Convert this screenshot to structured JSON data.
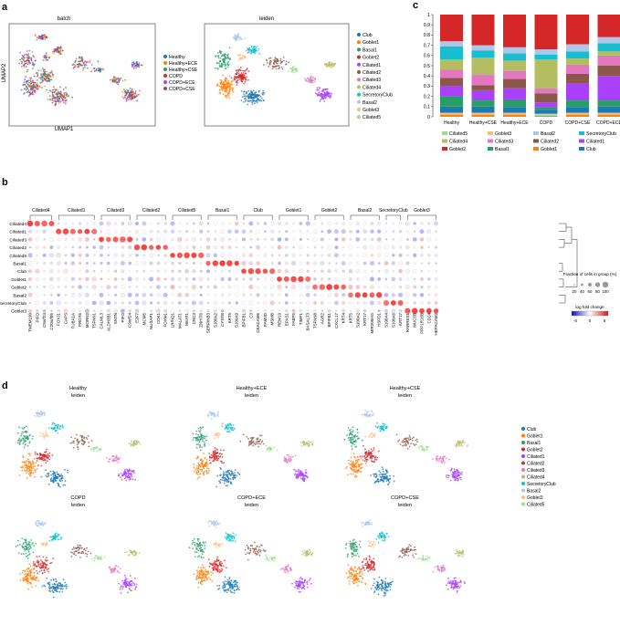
{
  "panel_letters": [
    "a",
    "b",
    "c",
    "d"
  ],
  "palette": {
    "Club": "#1f77b4",
    "Goblet1": "#ff7f0e",
    "Basal1": "#279e68",
    "Goblet2": "#d62728",
    "Ciliated1": "#aa40fc",
    "Ciliated2": "#8c564b",
    "Ciliated3": "#e377c2",
    "Ciliated4": "#b5bd61",
    "SecretoryClub": "#17becf",
    "Basal2": "#aec7e8",
    "Goblet3": "#ffbb78",
    "Ciliated5": "#98df8a"
  },
  "panel_a": {
    "left": {
      "title": "batch",
      "xlabel": "UMAP1",
      "ylabel": "UMAP2",
      "legend": [
        {
          "label": "Healthy",
          "color": "#1f77b4"
        },
        {
          "label": "Healthy+ECE",
          "color": "#ff7f0e"
        },
        {
          "label": "Healthy+CSE",
          "color": "#279e68"
        },
        {
          "label": "COPD",
          "color": "#d62728"
        },
        {
          "label": "COPD+ECE",
          "color": "#aa40fc"
        },
        {
          "label": "COPD+CSE",
          "color": "#8c564b"
        }
      ]
    },
    "right": {
      "title": "leiden",
      "legend": [
        "Club",
        "Goblet1",
        "Basal1",
        "Goblet2",
        "Ciliated1",
        "Ciliated2",
        "Ciliated3",
        "Ciliated4",
        "SecretoryClub",
        "Basal2",
        "Goblet3",
        "Ciliated5"
      ]
    }
  },
  "chart_data": [
    {
      "type": "bar",
      "stacked": true,
      "panel": "c",
      "categories": [
        "Healthy",
        "Healthy+CSE",
        "Healthy+ECE",
        "COPD",
        "COPD+CSE",
        "COPD+ECE"
      ],
      "ylim": [
        0,
        1
      ],
      "yticks": [
        "0",
        "0.1",
        "0.2",
        "0.3",
        "0.4",
        "0.5",
        "0.6",
        "0.7",
        "0.8",
        "0.9",
        "1"
      ],
      "series": [
        {
          "name": "Goblet1",
          "color": "#ff7f0e",
          "values": [
            0.02,
            0.02,
            0.02,
            0.01,
            0.02,
            0.02
          ]
        },
        {
          "name": "Ciliated5",
          "color": "#98df8a",
          "values": [
            0.01,
            0.01,
            0.01,
            0.01,
            0.01,
            0.01
          ]
        },
        {
          "name": "Goblet3",
          "color": "#ffbb78",
          "values": [
            0.01,
            0.01,
            0.01,
            0.01,
            0.01,
            0.01
          ]
        },
        {
          "name": "Club",
          "color": "#1f77b4",
          "values": [
            0.06,
            0.06,
            0.05,
            0.04,
            0.05,
            0.06
          ]
        },
        {
          "name": "Basal1",
          "color": "#279e68",
          "values": [
            0.1,
            0.06,
            0.08,
            0.02,
            0.07,
            0.06
          ]
        },
        {
          "name": "Ciliated1",
          "color": "#aa40fc",
          "values": [
            0.1,
            0.1,
            0.11,
            0.05,
            0.17,
            0.24
          ]
        },
        {
          "name": "Ciliated2",
          "color": "#8c564b",
          "values": [
            0.08,
            0.05,
            0.09,
            0.09,
            0.09,
            0.1
          ]
        },
        {
          "name": "Ciliated3",
          "color": "#e377c2",
          "values": [
            0.08,
            0.1,
            0.08,
            0.05,
            0.09,
            0.1
          ]
        },
        {
          "name": "Ciliated4",
          "color": "#b5bd61",
          "values": [
            0.1,
            0.17,
            0.1,
            0.28,
            0.06,
            0.04
          ]
        },
        {
          "name": "SecretoryClub",
          "color": "#17becf",
          "values": [
            0.13,
            0.07,
            0.07,
            0.05,
            0.07,
            0.08
          ]
        },
        {
          "name": "Basal2",
          "color": "#aec7e8",
          "values": [
            0.05,
            0.05,
            0.06,
            0.05,
            0.07,
            0.06
          ]
        },
        {
          "name": "Goblet2",
          "color": "#d62728",
          "values": [
            0.26,
            0.3,
            0.32,
            0.34,
            0.29,
            0.22
          ]
        }
      ],
      "legend": [
        {
          "label": "Ciliated5",
          "color": "#98df8a"
        },
        {
          "label": "Goblet3",
          "color": "#ffbb78"
        },
        {
          "label": "Basal2",
          "color": "#aec7e8"
        },
        {
          "label": "SecretoryClub",
          "color": "#17becf"
        },
        {
          "label": "Ciliated4",
          "color": "#b5bd61"
        },
        {
          "label": "Ciliated3",
          "color": "#e377c2"
        },
        {
          "label": "Ciliated2",
          "color": "#8c564b"
        },
        {
          "label": "Ciliated1",
          "color": "#aa40fc"
        },
        {
          "label": "Goblet2",
          "color": "#d62728"
        },
        {
          "label": "Basal1",
          "color": "#279e68"
        },
        {
          "label": "Goblet1",
          "color": "#ff7f0e"
        },
        {
          "label": "Club",
          "color": "#1f77b4"
        }
      ]
    },
    {
      "type": "heatmap",
      "panel": "b",
      "rows": [
        "Ciliated4",
        "Ciliated1",
        "Ciliated3",
        "Ciliated2",
        "Ciliated5",
        "Basal1",
        "Club",
        "Goblet1",
        "Goblet2",
        "Basal2",
        "SecretoryClub",
        "Goblet3"
      ],
      "groups": [
        {
          "name": "Ciliated4",
          "genes": [
            "TMEM190",
            "PIFO",
            "C9orf24",
            "C20orf85"
          ]
        },
        {
          "name": "Ciliated1",
          "genes": [
            "FOXJ1",
            "CAPS",
            "TUBA1A",
            "PRDX5",
            "MORN2",
            "TSPAN1"
          ]
        },
        {
          "name": "Ciliated3",
          "genes": [
            "CALML3",
            "ALDH3B1",
            "SNTN",
            "PIFO",
            "C9orf24"
          ]
        },
        {
          "name": "Ciliated2",
          "genes": [
            "E2F7",
            "MCM5",
            "NUSAP1",
            "CDK1",
            "FOXM1"
          ]
        },
        {
          "name": "Ciliated5",
          "genes": [
            "LRRIQ1",
            "MALAT1",
            "NEAT1",
            "CRC3",
            "ZNHIT6"
          ]
        },
        {
          "name": "Basal1",
          "genes": [
            "SERPINB3",
            "S100A2",
            "CYSTB",
            "KRT5",
            "S100A9"
          ]
        },
        {
          "name": "Club",
          "genes": [
            "BPIFB1",
            "C3",
            "CEACAM6",
            "FAM3D",
            "MSMB"
          ]
        },
        {
          "name": "Goblet1",
          "genes": [
            "REM19",
            "EPAS1",
            "FABP5",
            "TIMP1",
            "BASALT3"
          ]
        },
        {
          "name": "Goblet2",
          "genes": [
            "TSPAN8",
            "AGR2",
            "BPIFB1",
            "CXCL17",
            "KRT4"
          ]
        },
        {
          "name": "Basal2",
          "genes": [
            "KRT5",
            "S100A2",
            "KRT17",
            "MIR205HG",
            "HSPD1"
          ]
        },
        {
          "name": "SecretoryClub",
          "genes": [
            "S100A4",
            "S100A6",
            "KRT17"
          ]
        },
        {
          "name": "Goblet3",
          "genes": [
            "RARRES1",
            "MUC5B",
            "PPP1R16B",
            "CD24",
            "HEPACAM2"
          ]
        }
      ],
      "size_legend": {
        "title": "Fraction of cells in group (%)",
        "ticks": [
          "20",
          "40",
          "60",
          "80",
          "100"
        ]
      },
      "color_legend": {
        "title": "log fold change",
        "ticks": [
          "-5",
          "0",
          "5"
        ]
      }
    }
  ],
  "panel_d": {
    "conditions": [
      {
        "title": "Healthy",
        "sub": "leiden"
      },
      {
        "title": "Healthy+ECE",
        "sub": "leiden"
      },
      {
        "title": "Healthy+CSE",
        "sub": "leiden"
      },
      {
        "title": "COPD",
        "sub": "leiden"
      },
      {
        "title": "COPD+ECE",
        "sub": "leiden"
      },
      {
        "title": "COPD+CSE",
        "sub": "leiden"
      }
    ],
    "legend": [
      "Club",
      "Goblet1",
      "Basal1",
      "Goblet2",
      "Ciliated1",
      "Ciliated2",
      "Ciliated3",
      "Ciliated4",
      "SecretoryClub",
      "Basal2",
      "Goblet3",
      "Ciliated5"
    ]
  }
}
